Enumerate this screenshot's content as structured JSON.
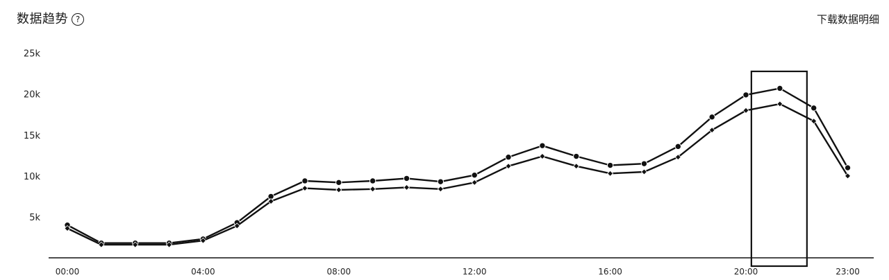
{
  "header": {
    "title": "数据趋势",
    "help_symbol": "?",
    "download_label": "下载数据明细"
  },
  "colors": {
    "line": "#111111",
    "axis": "#111111",
    "highlight": "#111111"
  },
  "chart_data": {
    "type": "line",
    "title": "",
    "xlabel": "",
    "ylabel": "",
    "x": [
      "00:00",
      "01:00",
      "02:00",
      "03:00",
      "04:00",
      "05:00",
      "06:00",
      "07:00",
      "08:00",
      "09:00",
      "10:00",
      "11:00",
      "12:00",
      "13:00",
      "14:00",
      "15:00",
      "16:00",
      "17:00",
      "18:00",
      "19:00",
      "20:00",
      "21:00",
      "22:00",
      "23:00"
    ],
    "x_tick_labels": [
      "00:00",
      "04:00",
      "08:00",
      "12:00",
      "16:00",
      "20:00",
      "23:00"
    ],
    "y_tick_values": [
      5000,
      10000,
      15000,
      20000,
      25000
    ],
    "y_tick_labels": [
      "5k",
      "10k",
      "15k",
      "20k",
      "25k"
    ],
    "ylim": [
      0,
      26000
    ],
    "grid": false,
    "series": [
      {
        "marker": "circle",
        "values": [
          4000,
          1800,
          1800,
          1800,
          2300,
          4300,
          7500,
          9400,
          9200,
          9400,
          9700,
          9300,
          10100,
          12300,
          13700,
          12400,
          11300,
          11500,
          13600,
          17200,
          19900,
          20700,
          18300,
          11000
        ]
      },
      {
        "marker": "diamond",
        "values": [
          3600,
          1600,
          1600,
          1600,
          2100,
          3900,
          6900,
          8500,
          8300,
          8400,
          8600,
          8400,
          9200,
          11200,
          12400,
          11200,
          10300,
          10500,
          12300,
          15600,
          18000,
          18800,
          16700,
          10000
        ]
      }
    ],
    "highlight": {
      "label": "21:00"
    }
  }
}
